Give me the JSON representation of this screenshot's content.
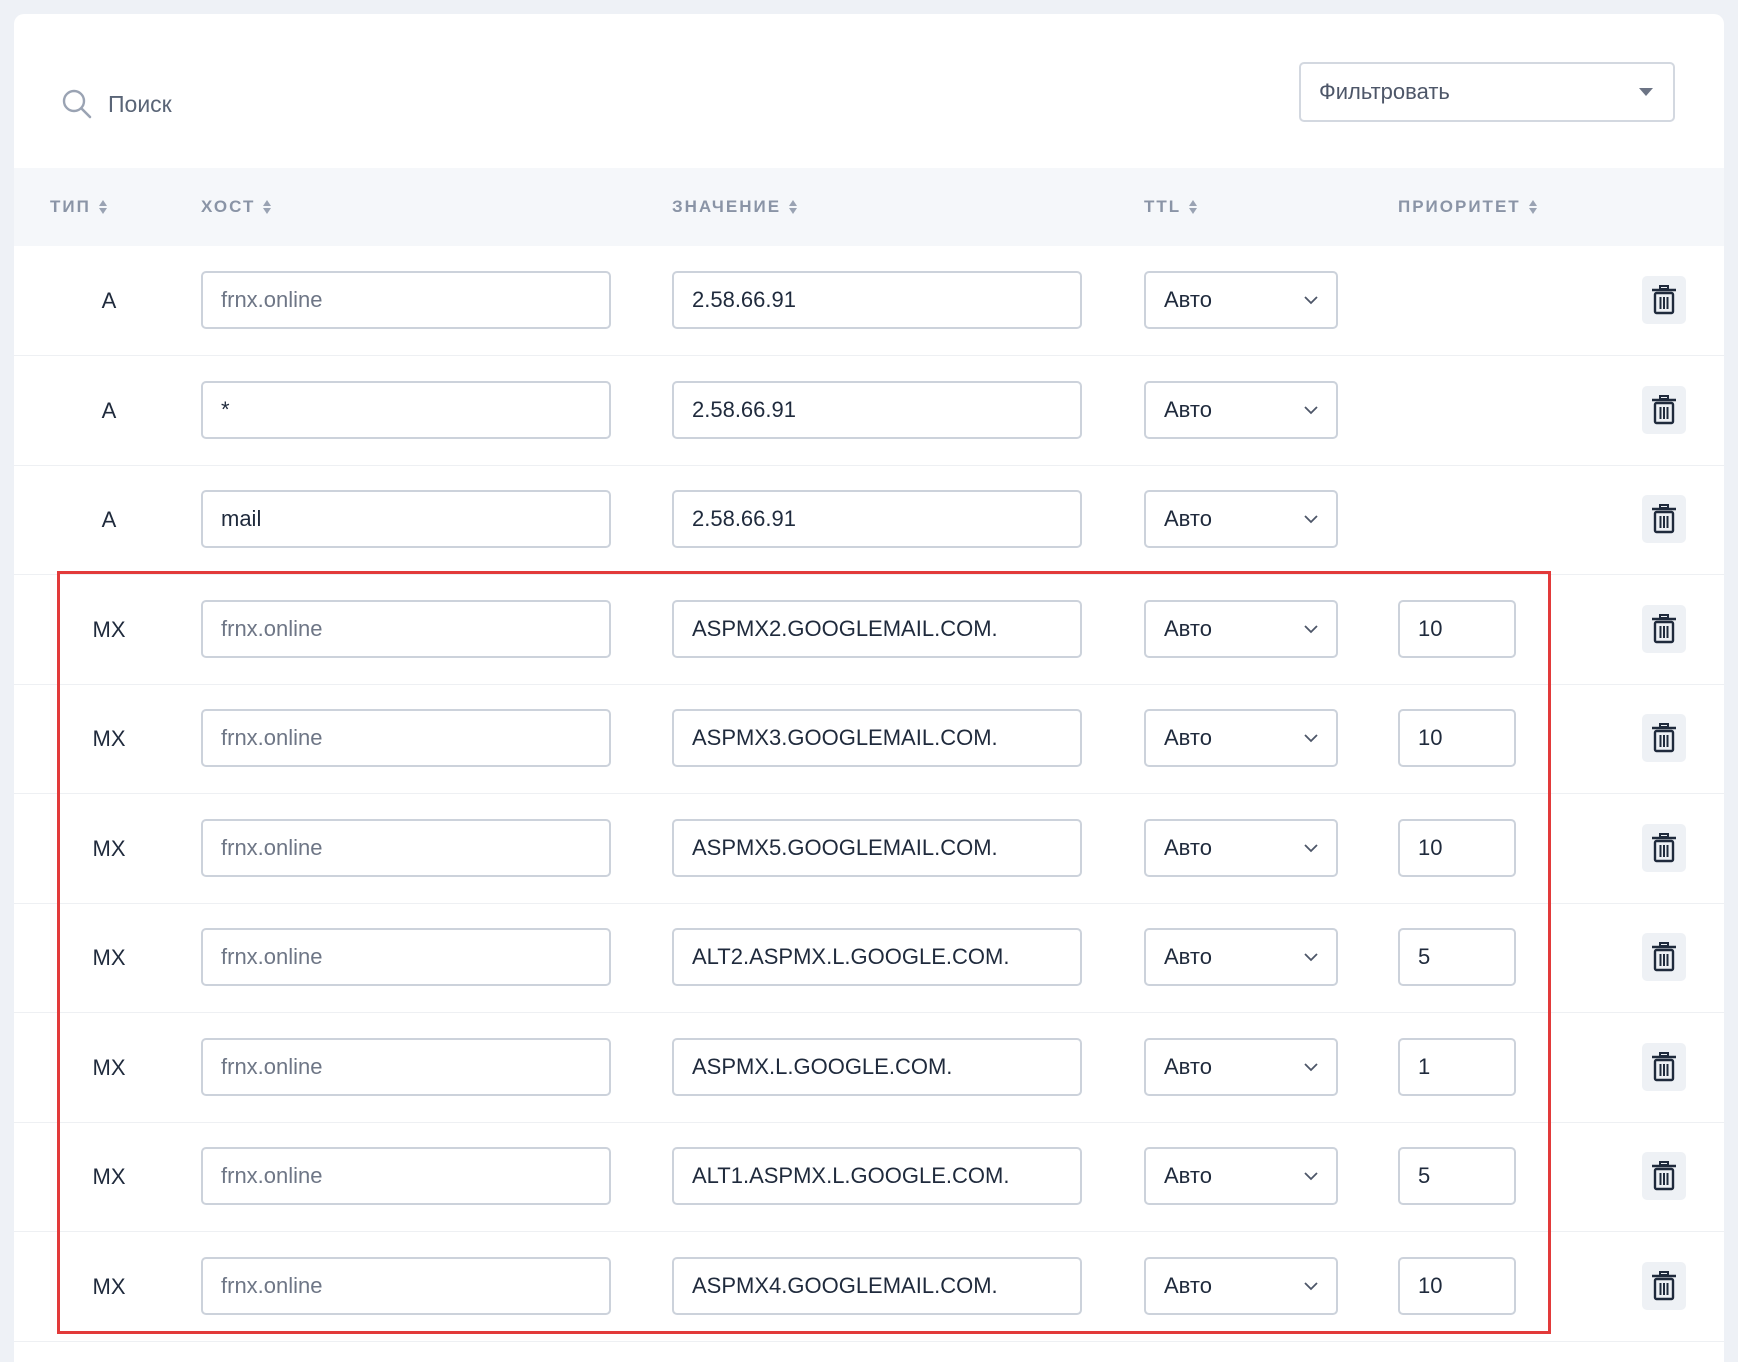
{
  "search": {
    "label": "Поиск"
  },
  "filter": {
    "label": "Фильтровать"
  },
  "columns": {
    "type": "ТИП",
    "host": "ХОСТ",
    "value": "ЗНАЧЕНИЕ",
    "ttl": "TTL",
    "priority": "ПРИОРИТЕТ"
  },
  "records": [
    {
      "type": "A",
      "host": "frnx.online",
      "value": "2.58.66.91",
      "ttl": "Авто",
      "priority": ""
    },
    {
      "type": "A",
      "host": "*",
      "value": "2.58.66.91",
      "ttl": "Авто",
      "priority": ""
    },
    {
      "type": "A",
      "host": "mail",
      "value": "2.58.66.91",
      "ttl": "Авто",
      "priority": ""
    },
    {
      "type": "MX",
      "host": "frnx.online",
      "value": "ASPMX2.GOOGLEMAIL.COM.",
      "ttl": "Авто",
      "priority": "10"
    },
    {
      "type": "MX",
      "host": "frnx.online",
      "value": "ASPMX3.GOOGLEMAIL.COM.",
      "ttl": "Авто",
      "priority": "10"
    },
    {
      "type": "MX",
      "host": "frnx.online",
      "value": "ASPMX5.GOOGLEMAIL.COM.",
      "ttl": "Авто",
      "priority": "10"
    },
    {
      "type": "MX",
      "host": "frnx.online",
      "value": "ALT2.ASPMX.L.GOOGLE.COM.",
      "ttl": "Авто",
      "priority": "5"
    },
    {
      "type": "MX",
      "host": "frnx.online",
      "value": "ASPMX.L.GOOGLE.COM.",
      "ttl": "Авто",
      "priority": "1"
    },
    {
      "type": "MX",
      "host": "frnx.online",
      "value": "ALT1.ASPMX.L.GOOGLE.COM.",
      "ttl": "Авто",
      "priority": "5"
    },
    {
      "type": "MX",
      "host": "frnx.online",
      "value": "ASPMX4.GOOGLEMAIL.COM.",
      "ttl": "Авто",
      "priority": "10"
    }
  ],
  "colors": {
    "highlight": "#e23a3a",
    "border": "#ccd2db",
    "header_text": "#8a94a6"
  },
  "icons": {
    "search": "search-icon",
    "filter_caret": "caret-down-icon",
    "ttl_chevron": "chevron-down-icon",
    "delete": "trash-icon"
  }
}
